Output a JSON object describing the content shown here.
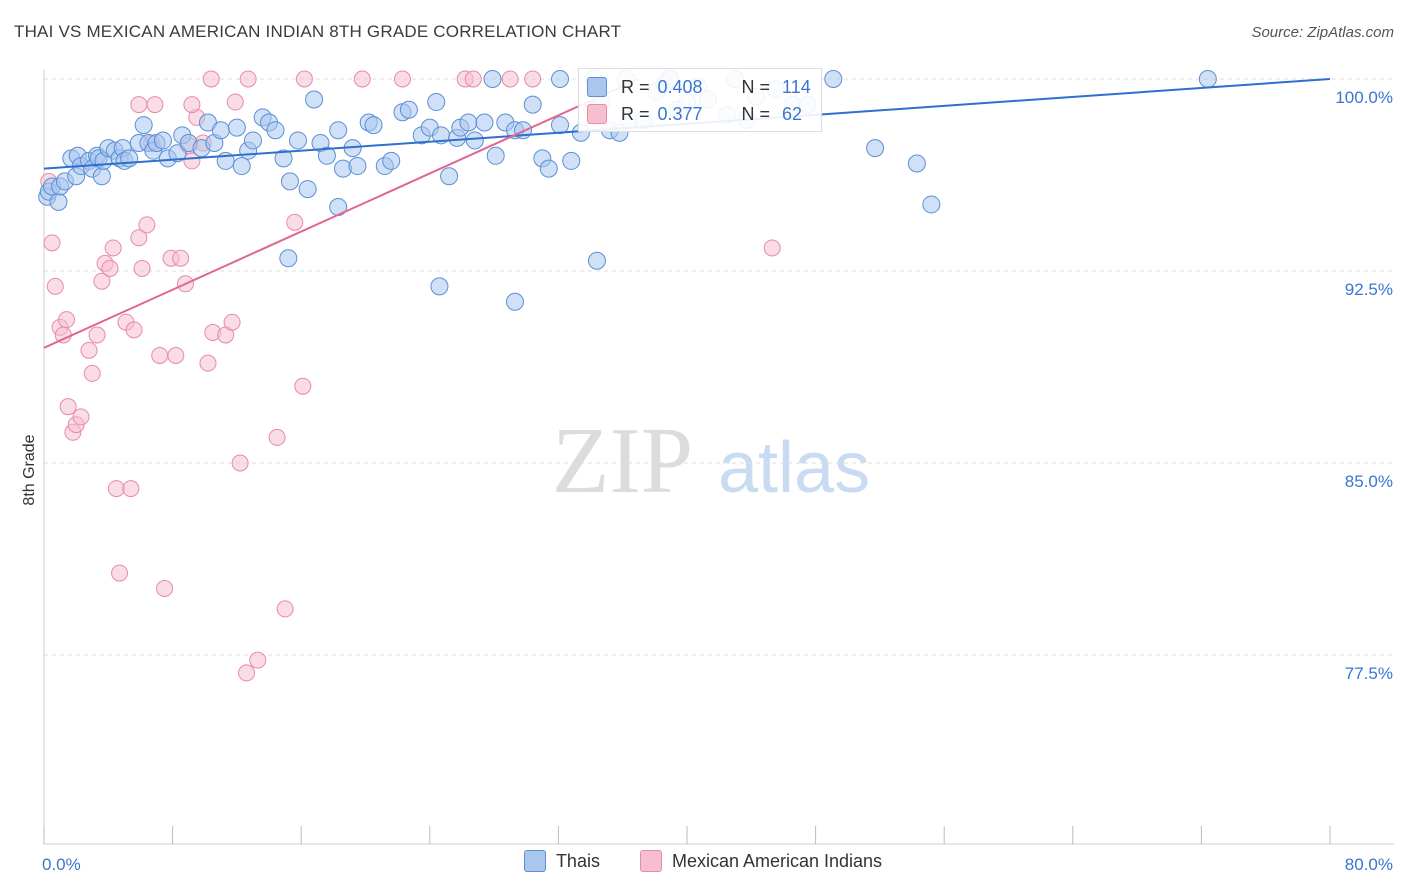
{
  "title": "THAI VS MEXICAN AMERICAN INDIAN 8TH GRADE CORRELATION CHART",
  "source": "Source: ZipAtlas.com",
  "watermark": {
    "zip": "ZIP",
    "atlas": "atlas"
  },
  "stats": {
    "thais": {
      "r_label": "R =",
      "r_value": "0.408",
      "n_label": "N =",
      "n_value": "114"
    },
    "mexican": {
      "r_label": "R =",
      "r_value": "0.377",
      "n_label": "N =",
      "n_value": "62"
    }
  },
  "colors": {
    "thais_fill": "#a9c6ee",
    "thais_stroke": "#5b8fd6",
    "thais_line": "#2f6fcd",
    "mexican_fill": "#f6bfd0",
    "mexican_stroke": "#e88aa8",
    "mexican_line": "#e0678f",
    "grid": "#dddddd",
    "tick_text": "#3a76d0"
  },
  "chart_data": {
    "type": "scatter",
    "title": "THAI VS MEXICAN AMERICAN INDIAN 8TH GRADE CORRELATION CHART",
    "xlabel": "",
    "ylabel": "8th Grade",
    "xlim": [
      0,
      80
    ],
    "ylim": [
      71.0,
      100.8
    ],
    "x_tick_labels": [
      {
        "value": 0,
        "label": "0.0%"
      },
      {
        "value": 80,
        "label": "80.0%"
      }
    ],
    "y_ticks": [
      {
        "value": 100.0,
        "label": "100.0%"
      },
      {
        "value": 92.5,
        "label": "92.5%"
      },
      {
        "value": 85.0,
        "label": "85.0%"
      },
      {
        "value": 77.5,
        "label": "77.5%"
      }
    ],
    "grid": true,
    "legend_position": "bottom-center",
    "series": [
      {
        "name": "Thais",
        "trend": {
          "x": [
            0,
            80
          ],
          "y": [
            96.5,
            100.0
          ]
        },
        "points": [
          [
            0.2,
            95.4
          ],
          [
            0.3,
            95.6
          ],
          [
            0.5,
            95.8
          ],
          [
            0.9,
            95.2
          ],
          [
            1.0,
            95.8
          ],
          [
            1.3,
            96.0
          ],
          [
            1.7,
            96.9
          ],
          [
            2.0,
            96.2
          ],
          [
            2.1,
            97.0
          ],
          [
            2.3,
            96.6
          ],
          [
            2.8,
            96.8
          ],
          [
            3.0,
            96.5
          ],
          [
            3.3,
            97.0
          ],
          [
            3.4,
            96.9
          ],
          [
            3.6,
            96.2
          ],
          [
            3.7,
            96.8
          ],
          [
            4.0,
            97.3
          ],
          [
            4.4,
            97.2
          ],
          [
            4.7,
            96.9
          ],
          [
            4.9,
            97.3
          ],
          [
            5.0,
            96.8
          ],
          [
            5.3,
            96.9
          ],
          [
            5.9,
            97.5
          ],
          [
            6.2,
            98.2
          ],
          [
            6.5,
            97.5
          ],
          [
            6.8,
            97.2
          ],
          [
            7.0,
            97.5
          ],
          [
            7.4,
            97.6
          ],
          [
            7.7,
            96.9
          ],
          [
            8.3,
            97.1
          ],
          [
            8.6,
            97.8
          ],
          [
            9.0,
            97.5
          ],
          [
            9.8,
            97.3
          ],
          [
            10.2,
            98.3
          ],
          [
            10.6,
            97.5
          ],
          [
            11.0,
            98.0
          ],
          [
            11.3,
            96.8
          ],
          [
            12.0,
            98.1
          ],
          [
            12.3,
            96.6
          ],
          [
            12.7,
            97.2
          ],
          [
            13.0,
            97.6
          ],
          [
            13.6,
            98.5
          ],
          [
            14.0,
            98.3
          ],
          [
            14.4,
            98.0
          ],
          [
            14.9,
            96.9
          ],
          [
            15.3,
            96.0
          ],
          [
            15.8,
            97.6
          ],
          [
            16.4,
            95.7
          ],
          [
            16.8,
            99.2
          ],
          [
            17.2,
            97.5
          ],
          [
            17.6,
            97.0
          ],
          [
            18.3,
            98.0
          ],
          [
            18.6,
            96.5
          ],
          [
            19.2,
            97.3
          ],
          [
            19.5,
            96.6
          ],
          [
            20.2,
            98.3
          ],
          [
            20.5,
            98.2
          ],
          [
            21.2,
            96.6
          ],
          [
            21.6,
            96.8
          ],
          [
            22.3,
            98.7
          ],
          [
            22.7,
            98.8
          ],
          [
            23.5,
            97.8
          ],
          [
            24.0,
            98.1
          ],
          [
            24.4,
            99.1
          ],
          [
            24.7,
            97.8
          ],
          [
            25.2,
            96.2
          ],
          [
            25.7,
            97.7
          ],
          [
            25.9,
            98.1
          ],
          [
            26.4,
            98.3
          ],
          [
            26.8,
            97.6
          ],
          [
            27.4,
            98.3
          ],
          [
            28.1,
            97.0
          ],
          [
            28.7,
            98.3
          ],
          [
            29.3,
            98.0
          ],
          [
            29.8,
            98.0
          ],
          [
            30.4,
            99.0
          ],
          [
            31.0,
            96.9
          ],
          [
            31.4,
            96.5
          ],
          [
            32.1,
            98.2
          ],
          [
            32.8,
            96.8
          ],
          [
            33.4,
            97.9
          ],
          [
            34.1,
            98.8
          ],
          [
            34.7,
            99.1
          ],
          [
            35.2,
            98.0
          ],
          [
            35.8,
            97.9
          ],
          [
            36.4,
            98.4
          ],
          [
            37.3,
            98.4
          ],
          [
            38.1,
            99.5
          ],
          [
            38.6,
            99.8
          ],
          [
            39.4,
            98.8
          ],
          [
            40.0,
            99.1
          ],
          [
            40.7,
            99.7
          ],
          [
            41.3,
            99.2
          ],
          [
            42.5,
            98.6
          ],
          [
            43.7,
            98.4
          ],
          [
            44.3,
            99.3
          ],
          [
            45.5,
            99.6
          ],
          [
            46.6,
            99.0
          ],
          [
            47.5,
            99.0
          ],
          [
            49.1,
            100.0
          ],
          [
            51.7,
            97.3
          ],
          [
            54.3,
            96.7
          ],
          [
            55.2,
            95.1
          ],
          [
            72.4,
            100.0
          ],
          [
            43.0,
            100.0
          ],
          [
            27.9,
            100.0
          ],
          [
            32.1,
            100.0
          ],
          [
            34.2,
            100.0
          ],
          [
            36.2,
            100.0
          ],
          [
            38.9,
            100.0
          ],
          [
            18.3,
            95.0
          ],
          [
            15.2,
            93.0
          ],
          [
            24.6,
            91.9
          ],
          [
            29.3,
            91.3
          ],
          [
            34.4,
            92.9
          ]
        ]
      },
      {
        "name": "Mexican American Indians",
        "trend": {
          "x": [
            0,
            37
          ],
          "y": [
            89.5,
            100.0
          ]
        },
        "points": [
          [
            0.3,
            96.0
          ],
          [
            0.5,
            93.6
          ],
          [
            0.7,
            91.9
          ],
          [
            1.0,
            90.3
          ],
          [
            1.2,
            90.0
          ],
          [
            1.4,
            90.6
          ],
          [
            1.5,
            87.2
          ],
          [
            1.8,
            86.2
          ],
          [
            2.0,
            86.5
          ],
          [
            2.3,
            86.8
          ],
          [
            2.8,
            89.4
          ],
          [
            3.0,
            88.5
          ],
          [
            3.3,
            90.0
          ],
          [
            3.6,
            92.1
          ],
          [
            3.8,
            92.8
          ],
          [
            4.1,
            92.6
          ],
          [
            4.3,
            93.4
          ],
          [
            4.5,
            84.0
          ],
          [
            4.7,
            80.7
          ],
          [
            5.1,
            90.5
          ],
          [
            5.4,
            84.0
          ],
          [
            5.6,
            90.2
          ],
          [
            5.9,
            93.8
          ],
          [
            6.1,
            92.6
          ],
          [
            6.4,
            94.3
          ],
          [
            6.7,
            97.5
          ],
          [
            6.9,
            99.0
          ],
          [
            7.2,
            89.2
          ],
          [
            7.5,
            80.1
          ],
          [
            7.9,
            93.0
          ],
          [
            8.2,
            89.2
          ],
          [
            8.5,
            93.0
          ],
          [
            8.8,
            92.0
          ],
          [
            9.2,
            96.8
          ],
          [
            9.5,
            98.5
          ],
          [
            9.9,
            97.5
          ],
          [
            10.2,
            88.9
          ],
          [
            10.5,
            90.1
          ],
          [
            11.3,
            90.0
          ],
          [
            11.7,
            90.5
          ],
          [
            11.9,
            99.1
          ],
          [
            12.2,
            85.0
          ],
          [
            12.6,
            76.8
          ],
          [
            13.3,
            77.3
          ],
          [
            14.5,
            86.0
          ],
          [
            15.0,
            79.3
          ],
          [
            15.6,
            94.4
          ],
          [
            16.1,
            88.0
          ],
          [
            5.9,
            99.0
          ],
          [
            9.2,
            99.0
          ],
          [
            10.4,
            100.0
          ],
          [
            12.7,
            100.0
          ],
          [
            16.2,
            100.0
          ],
          [
            19.8,
            100.0
          ],
          [
            22.3,
            100.0
          ],
          [
            26.2,
            100.0
          ],
          [
            26.7,
            100.0
          ],
          [
            29.0,
            100.0
          ],
          [
            30.4,
            100.0
          ],
          [
            39.0,
            100.0
          ],
          [
            45.3,
            93.4
          ],
          [
            9.0,
            97.4
          ]
        ]
      }
    ]
  },
  "legend": [
    {
      "label": "Thais"
    },
    {
      "label": "Mexican American Indians"
    }
  ]
}
